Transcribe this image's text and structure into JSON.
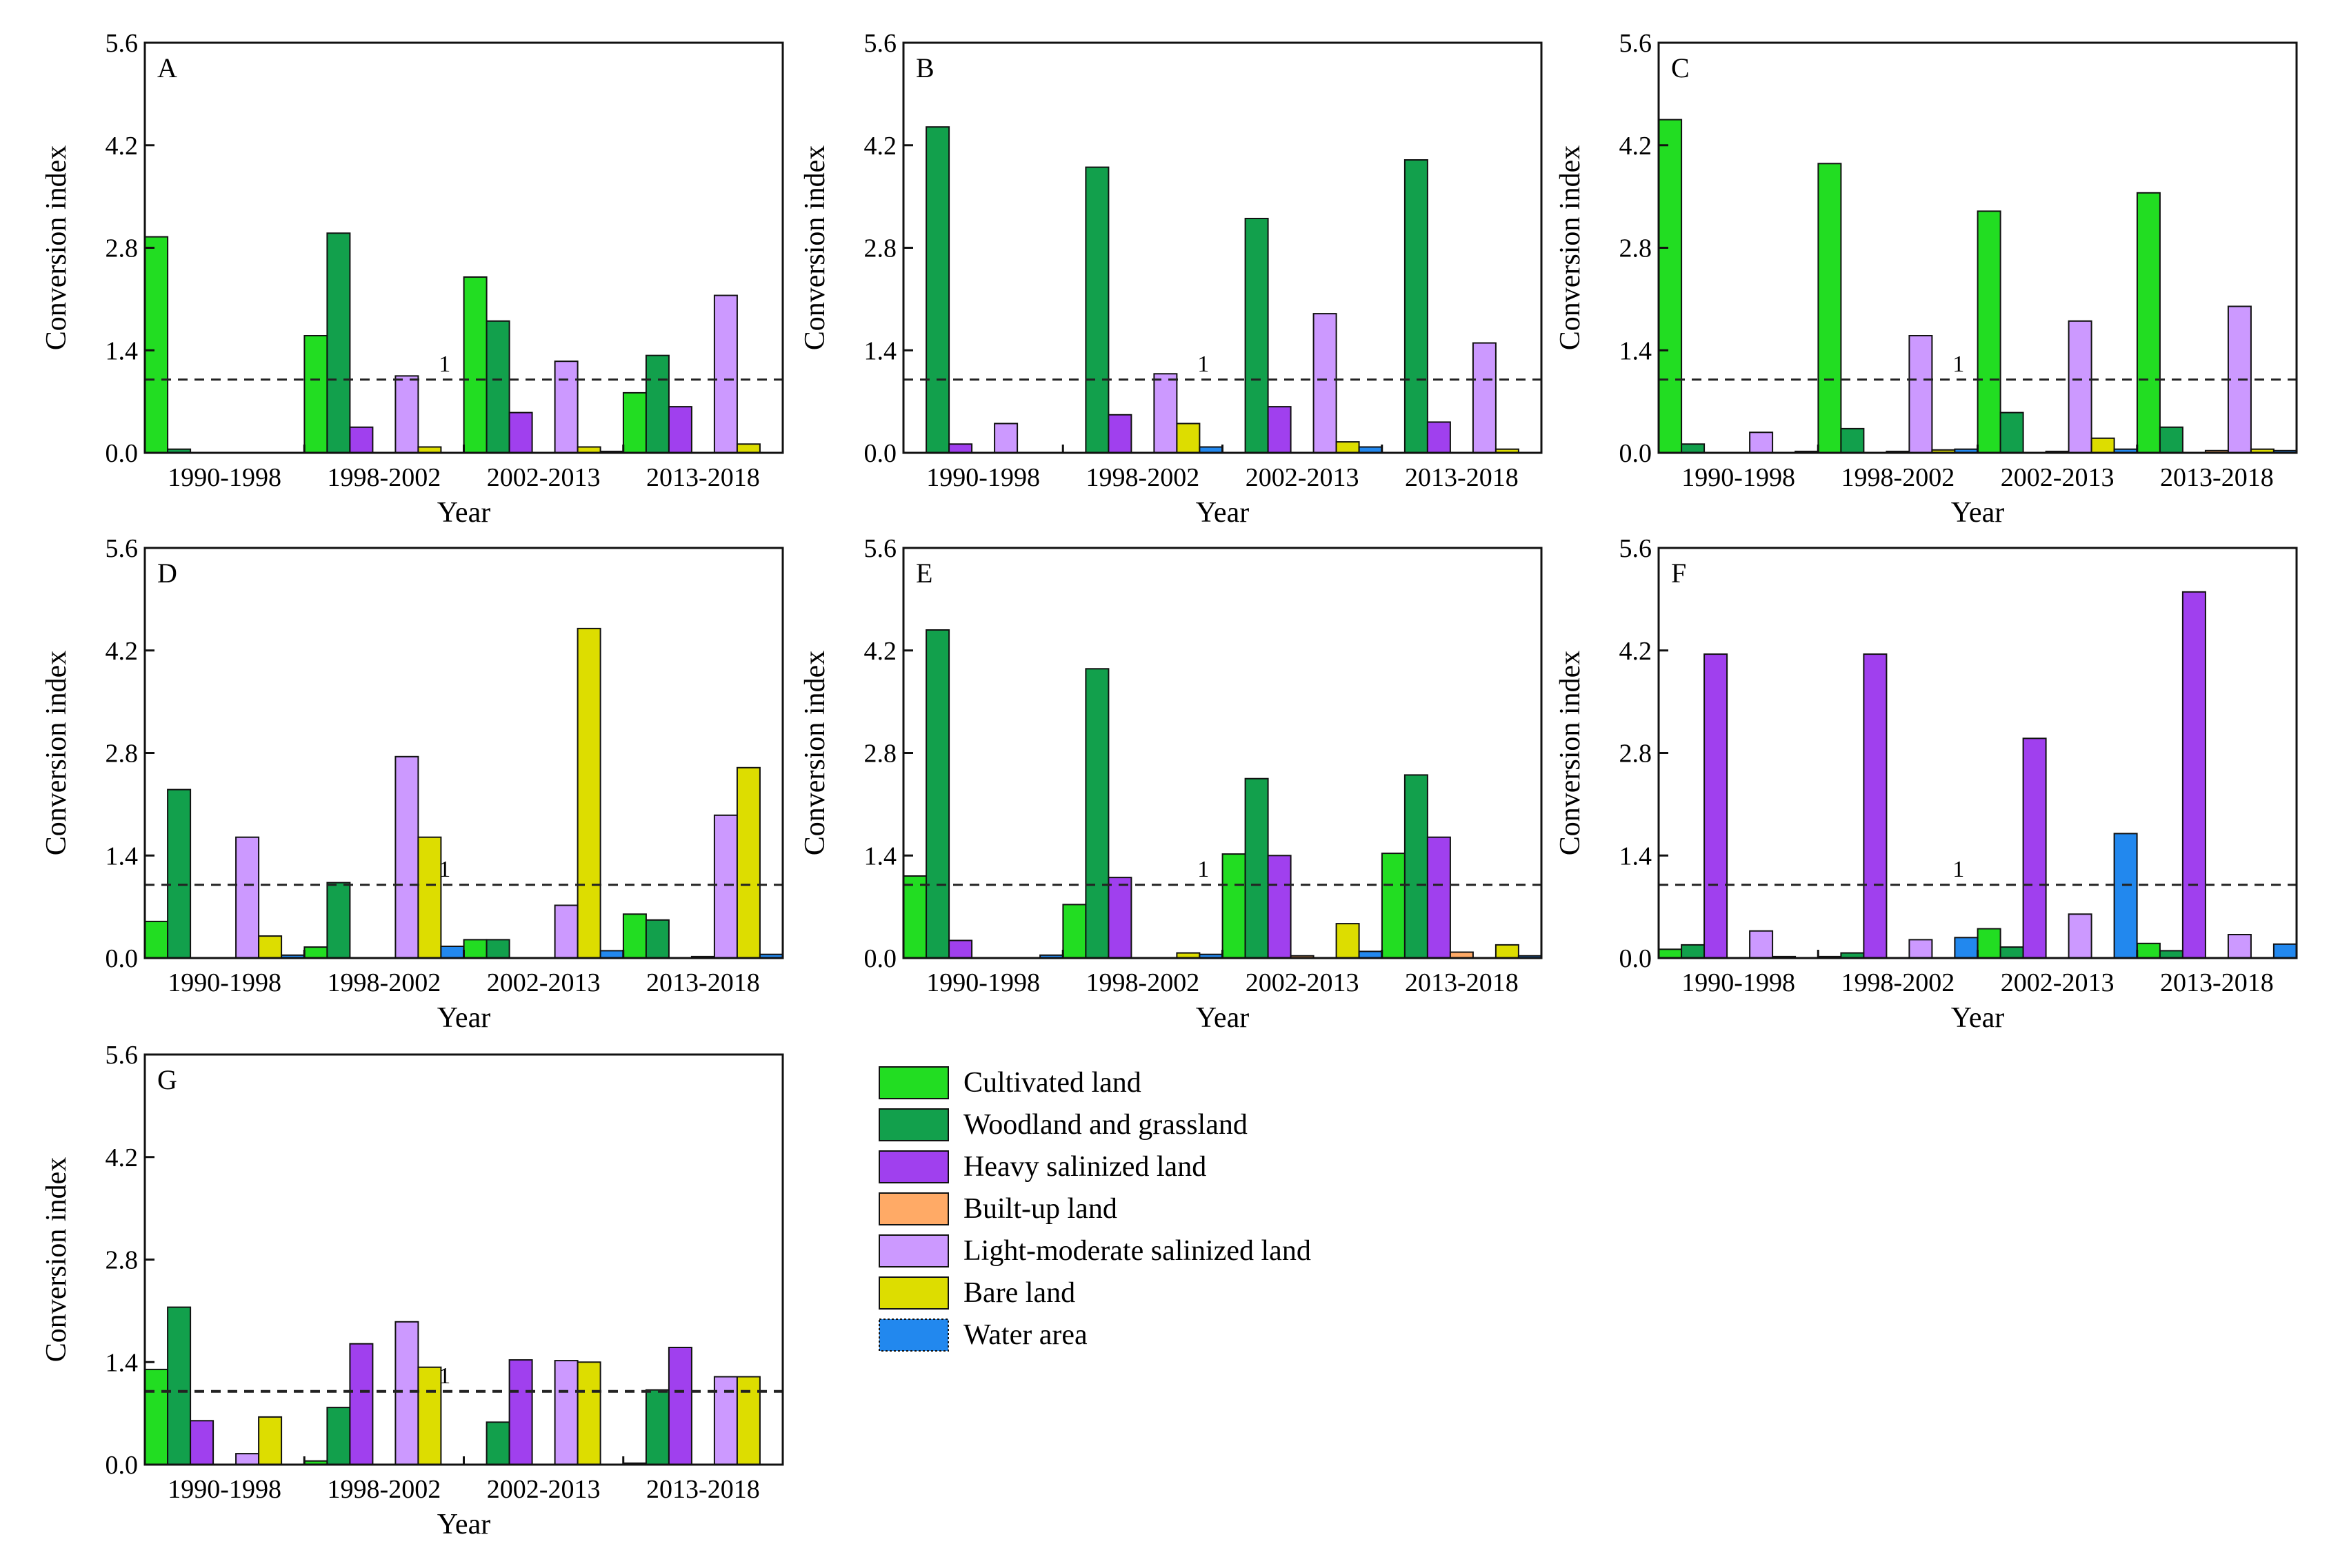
{
  "chart_data": {
    "type": "bar",
    "shared": {
      "categories": [
        "1990-1998",
        "1998-2002",
        "2002-2013",
        "2013-2018"
      ],
      "series_names": [
        "Cultivated land",
        "Woodland and grassland",
        "Heavy salinized land",
        "Built-up land",
        "Light-moderate salinized land",
        "Bare land",
        "Water area"
      ],
      "series_colors": [
        "#22dd22",
        "#12a04c",
        "#a040ee",
        "#ffaa66",
        "#cc99ff",
        "#dddd00",
        "#2288ee"
      ],
      "xlabel": "Year",
      "ylabel": "Conversion index",
      "yticks": [
        "0.0",
        "1.4",
        "2.8",
        "4.2",
        "5.6"
      ],
      "ylim": [
        0,
        5.6
      ],
      "reference_line": {
        "value": 1,
        "label": "1"
      }
    },
    "panels": [
      {
        "id": "A",
        "values": [
          [
            2.95,
            0.05,
            0,
            0,
            0,
            0,
            0
          ],
          [
            1.6,
            3.0,
            0.35,
            0,
            1.05,
            0.08,
            0
          ],
          [
            2.4,
            1.8,
            0.55,
            0,
            1.25,
            0.08,
            0.02
          ],
          [
            0.82,
            1.33,
            0.63,
            0,
            2.15,
            0.12,
            0
          ]
        ]
      },
      {
        "id": "B",
        "values": [
          [
            0,
            4.45,
            0.12,
            0,
            0.4,
            0,
            0
          ],
          [
            0,
            3.9,
            0.52,
            0,
            1.08,
            0.4,
            0.08
          ],
          [
            0,
            3.2,
            0.63,
            0,
            1.9,
            0.15,
            0.08
          ],
          [
            0,
            4.0,
            0.42,
            0,
            1.5,
            0.05,
            0
          ]
        ]
      },
      {
        "id": "C",
        "values": [
          [
            4.55,
            0.12,
            0,
            0,
            0.28,
            0,
            0.02
          ],
          [
            3.95,
            0.33,
            0,
            0.02,
            1.6,
            0.04,
            0.05
          ],
          [
            3.3,
            0.55,
            0,
            0.02,
            1.8,
            0.2,
            0.05
          ],
          [
            3.55,
            0.35,
            0,
            0.03,
            2.0,
            0.05,
            0.03
          ]
        ]
      },
      {
        "id": "D",
        "values": [
          [
            0.5,
            2.3,
            0,
            0,
            1.65,
            0.3,
            0.04
          ],
          [
            0.15,
            1.03,
            0,
            0,
            2.75,
            1.65,
            0.16
          ],
          [
            0.25,
            0.25,
            0,
            0,
            0.72,
            4.5,
            0.1
          ],
          [
            0.6,
            0.52,
            0,
            0.02,
            1.95,
            2.6,
            0.05
          ]
        ]
      },
      {
        "id": "E",
        "values": [
          [
            1.12,
            4.48,
            0.24,
            0,
            0,
            0,
            0.04
          ],
          [
            0.73,
            3.95,
            1.1,
            0,
            0,
            0.07,
            0.05
          ],
          [
            1.42,
            2.45,
            1.4,
            0.03,
            0,
            0.47,
            0.09
          ],
          [
            1.43,
            2.5,
            1.65,
            0.08,
            0,
            0.18,
            0.03
          ]
        ]
      },
      {
        "id": "F",
        "values": [
          [
            0.12,
            0.18,
            4.15,
            0,
            0.37,
            0.02,
            0
          ],
          [
            0.02,
            0.07,
            4.15,
            0,
            0.25,
            0,
            0.28
          ],
          [
            0.4,
            0.15,
            3.0,
            0,
            0.6,
            0,
            1.7
          ],
          [
            0.2,
            0.1,
            5.0,
            0,
            0.32,
            0,
            0.19
          ]
        ]
      },
      {
        "id": "G",
        "values": [
          [
            1.3,
            2.15,
            0.6,
            0,
            0.15,
            0.65,
            0
          ],
          [
            0.05,
            0.78,
            1.65,
            0,
            1.95,
            1.33,
            0
          ],
          [
            0,
            0.58,
            1.43,
            0,
            1.42,
            1.4,
            0
          ],
          [
            0.02,
            1.02,
            1.6,
            0,
            1.2,
            1.2,
            0
          ]
        ]
      }
    ]
  }
}
